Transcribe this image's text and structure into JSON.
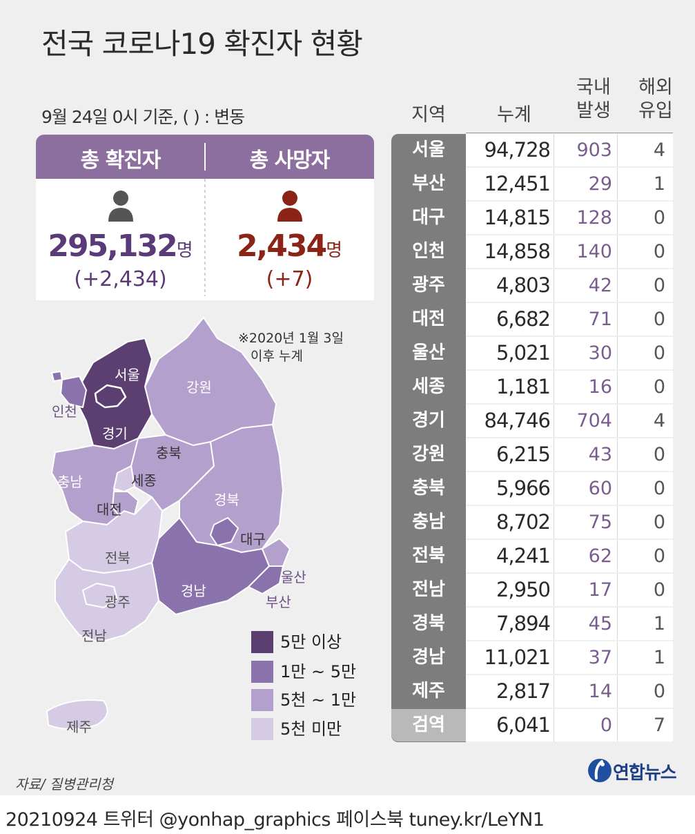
{
  "header": {
    "title": "전국 코로나19 확진자 현황",
    "subtitle": "9월 24일 0시 기준, ( ) : 변동"
  },
  "totals": {
    "confirmed": {
      "label": "총 확진자",
      "value": "295,132",
      "unit": "명",
      "change": "(+2,434)"
    },
    "deaths": {
      "label": "총 사망자",
      "value": "2,434",
      "unit": "명",
      "change": "(+7)"
    }
  },
  "table": {
    "headers": {
      "region": "지역",
      "total": "누계",
      "domestic": "국내\n발생",
      "overseas": "해외\n유입"
    },
    "rows": [
      {
        "region": "서울",
        "total": "94,728",
        "domestic": "903",
        "overseas": "4"
      },
      {
        "region": "부산",
        "total": "12,451",
        "domestic": "29",
        "overseas": "1"
      },
      {
        "region": "대구",
        "total": "14,815",
        "domestic": "128",
        "overseas": "0"
      },
      {
        "region": "인천",
        "total": "14,858",
        "domestic": "140",
        "overseas": "0"
      },
      {
        "region": "광주",
        "total": "4,803",
        "domestic": "42",
        "overseas": "0"
      },
      {
        "region": "대전",
        "total": "6,682",
        "domestic": "71",
        "overseas": "0"
      },
      {
        "region": "울산",
        "total": "5,021",
        "domestic": "30",
        "overseas": "0"
      },
      {
        "region": "세종",
        "total": "1,181",
        "domestic": "16",
        "overseas": "0"
      },
      {
        "region": "경기",
        "total": "84,746",
        "domestic": "704",
        "overseas": "4"
      },
      {
        "region": "강원",
        "total": "6,215",
        "domestic": "43",
        "overseas": "0"
      },
      {
        "region": "충북",
        "total": "5,966",
        "domestic": "60",
        "overseas": "0"
      },
      {
        "region": "충남",
        "total": "8,702",
        "domestic": "75",
        "overseas": "0"
      },
      {
        "region": "전북",
        "total": "4,241",
        "domestic": "62",
        "overseas": "0"
      },
      {
        "region": "전남",
        "total": "2,950",
        "domestic": "17",
        "overseas": "0"
      },
      {
        "region": "경북",
        "total": "7,894",
        "domestic": "45",
        "overseas": "1"
      },
      {
        "region": "경남",
        "total": "11,021",
        "domestic": "37",
        "overseas": "1"
      },
      {
        "region": "제주",
        "total": "2,817",
        "domestic": "14",
        "overseas": "0"
      },
      {
        "region": "검역",
        "total": "6,041",
        "domestic": "0",
        "overseas": "7"
      }
    ]
  },
  "map": {
    "note_line1": "※2020년 1월 3일",
    "note_line2": "이후 누계",
    "labels": {
      "seoul": "서울",
      "incheon": "인천",
      "gyeonggi": "경기",
      "gangwon": "강원",
      "chungbuk": "충북",
      "chungnam": "충남",
      "sejong": "세종",
      "daejeon": "대전",
      "gyeongbuk": "경북",
      "daegu": "대구",
      "ulsan": "울산",
      "busan": "부산",
      "gyeongnam": "경남",
      "jeonbuk": "전북",
      "gwangju": "광주",
      "jeonnam": "전남",
      "jeju": "제주"
    },
    "legend": [
      {
        "label": "5만 이상",
        "color": "#5a3f70"
      },
      {
        "label": "1만 ~ 5만",
        "color": "#8a72ac"
      },
      {
        "label": "5천 ~ 1만",
        "color": "#b3a0cc"
      },
      {
        "label": "5천 미만",
        "color": "#d6cbe4"
      }
    ]
  },
  "source": "자료/ 질병관리청",
  "logo_text": "연합뉴스",
  "footer": "20210924 트위터 @yonhap_graphics  페이스북 tuney.kr/LeYN1",
  "colors": {
    "accent": "#8c6e9f",
    "confirmed_value": "#5b3a78",
    "deaths_value": "#8b2416",
    "region_cell": "#7d7d7d"
  }
}
